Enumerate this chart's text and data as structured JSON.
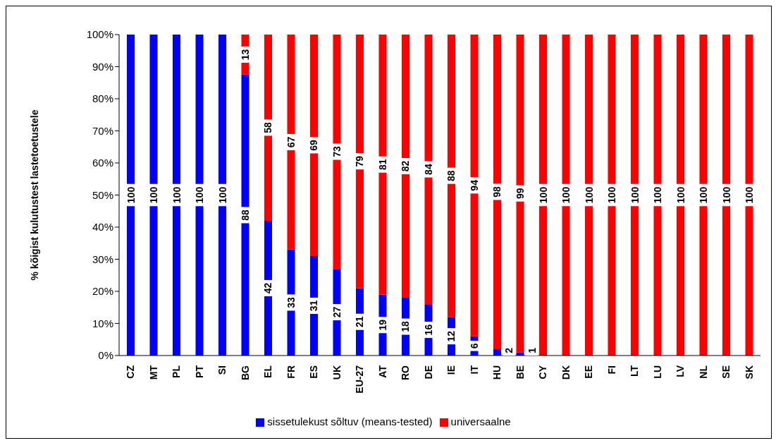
{
  "chart_data": {
    "type": "bar",
    "stacked": true,
    "ylabel": "% kõigist kulutustest lastetoetustele",
    "categories": [
      "CZ",
      "MT",
      "PL",
      "PT",
      "SI",
      "BG",
      "EL",
      "FR",
      "ES",
      "UK",
      "EU-27",
      "AT",
      "RO",
      "DE",
      "IE",
      "IT",
      "HU",
      "BE",
      "CY",
      "DK",
      "EE",
      "FI",
      "LT",
      "LU",
      "LV",
      "NL",
      "SE",
      "SK"
    ],
    "series": [
      {
        "name": "sissetulekust sõltuv (means-tested)",
        "color": "#0000ff",
        "values": [
          100,
          100,
          100,
          100,
          100,
          87.5,
          42,
          33,
          31,
          27,
          21,
          19,
          18,
          16,
          12,
          6,
          2,
          1,
          0,
          0,
          0,
          0,
          0,
          0,
          0,
          0,
          0,
          0
        ],
        "value_labels": [
          "100",
          "100",
          "100",
          "100",
          "100",
          "88",
          "42",
          "33",
          "31",
          "27",
          "21",
          "19",
          "18",
          "16",
          "12",
          "6",
          "2",
          "1",
          null,
          null,
          null,
          null,
          null,
          null,
          null,
          null,
          null,
          null
        ]
      },
      {
        "name": "universaalne",
        "color": "#ff0000",
        "values": [
          0,
          0,
          0,
          0,
          0,
          12.5,
          58,
          67,
          69,
          73,
          79,
          81,
          82,
          84,
          88,
          94,
          98,
          99,
          100,
          100,
          100,
          100,
          100,
          100,
          100,
          100,
          100,
          100
        ],
        "value_labels": [
          null,
          null,
          null,
          null,
          null,
          "13",
          "58",
          "67",
          "69",
          "73",
          "79",
          "81",
          "82",
          "84",
          "88",
          "94",
          "98",
          "99",
          "100",
          "100",
          "100",
          "100",
          "100",
          "100",
          "100",
          "100",
          "100",
          "100"
        ]
      }
    ],
    "ylim": [
      0,
      100
    ],
    "yticks": [
      {
        "value": 0,
        "label": "0%"
      },
      {
        "value": 10,
        "label": "10%"
      },
      {
        "value": 20,
        "label": "20%"
      },
      {
        "value": 30,
        "label": "30%"
      },
      {
        "value": 40,
        "label": "40%"
      },
      {
        "value": 50,
        "label": "50%"
      },
      {
        "value": 60,
        "label": "60%"
      },
      {
        "value": 70,
        "label": "70%"
      },
      {
        "value": 80,
        "label": "80%"
      },
      {
        "value": 90,
        "label": "90%"
      },
      {
        "value": 100,
        "label": "100%"
      }
    ],
    "legend": "bottom"
  }
}
